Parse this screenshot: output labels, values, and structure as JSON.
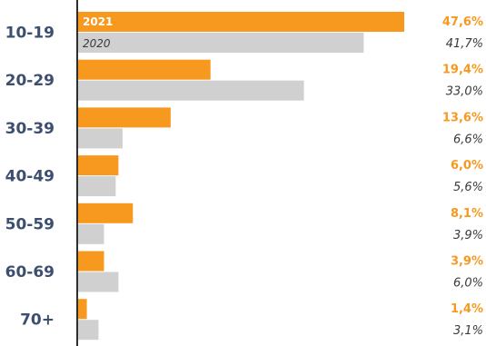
{
  "chart_data": {
    "type": "bar",
    "orientation": "horizontal",
    "categories": [
      "10-19",
      "20-29",
      "30-39",
      "40-49",
      "50-59",
      "60-69",
      "70+"
    ],
    "series": [
      {
        "name": "2021",
        "values": [
          47.6,
          19.4,
          13.6,
          6.0,
          8.1,
          3.9,
          1.4
        ],
        "labels": [
          "47,6%",
          "19,4%",
          "13,6%",
          "6,0%",
          "8,1%",
          "3,9%",
          "1,4%"
        ],
        "color": "#f7991f"
      },
      {
        "name": "2020",
        "values": [
          41.7,
          33.0,
          6.6,
          5.6,
          3.9,
          6.0,
          3.1
        ],
        "labels": [
          "41,7%",
          "33,0%",
          "6,6%",
          "5,6%",
          "3,9%",
          "6,0%",
          "3,1%"
        ],
        "color": "#d0d0d0"
      }
    ],
    "xlim": [
      0,
      55
    ],
    "grid": false,
    "legend": "inside-first-bars"
  },
  "colors": {
    "axis": "#2e2e2e",
    "category_text": "#3d4f70",
    "value_2020_text": "#3a3a3a"
  }
}
